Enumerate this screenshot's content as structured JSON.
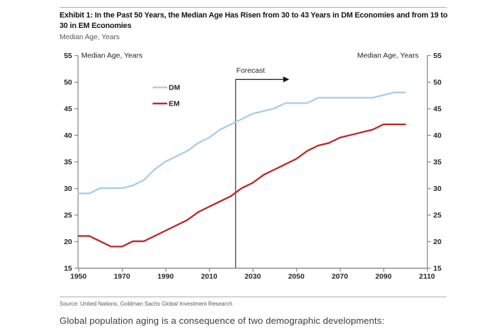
{
  "page": {
    "title": "Exhibit 1: In the Past 50 Years, the Median Age Has Risen from 30 to 43 Years in DM Economies and from 19 to 30 in EM Economies",
    "subtitle": "Median Age, Years",
    "source": "Source: United Nations, Goldman Sachs Global Investment Research",
    "body_text": "Global population aging is a consequence of two demographic developments:"
  },
  "colors": {
    "dm_line": "#A8CEEA",
    "em_line": "#BC2C28",
    "axis": "#8c8c8c",
    "forecast_line": "#4d4d4d",
    "tick_label": "#262626",
    "arrow": "#141414"
  },
  "chart_data": {
    "type": "line",
    "title": "Exhibit 1: In the Past 50 Years, the Median Age Has Risen from 30 to 43 Years in DM Economies and from 19 to 30 in EM Economies",
    "ylabel_left": "Median Age, Years",
    "ylabel_right": "Median Age, Years",
    "xlim": [
      1950,
      2110
    ],
    "ylim": [
      15,
      55
    ],
    "xticks": [
      1950,
      1970,
      1990,
      2010,
      2030,
      2050,
      2070,
      2090,
      2110
    ],
    "yticks": [
      15,
      20,
      25,
      30,
      35,
      40,
      45,
      50,
      55
    ],
    "grid": false,
    "legend_position": "upper-left-inside",
    "forecast": {
      "label": "Forecast",
      "year": 2022
    },
    "x": [
      1950,
      1955,
      1960,
      1965,
      1970,
      1975,
      1980,
      1985,
      1990,
      1995,
      2000,
      2005,
      2010,
      2015,
      2020,
      2025,
      2030,
      2035,
      2040,
      2045,
      2050,
      2055,
      2060,
      2065,
      2070,
      2075,
      2080,
      2085,
      2090,
      2095,
      2100
    ],
    "series": [
      {
        "name": "DM",
        "color": "#A8CEEA",
        "values": [
          29,
          29,
          30,
          30,
          30,
          30.5,
          31.5,
          33.5,
          35,
          36,
          37,
          38.5,
          39.5,
          41,
          42,
          43,
          44,
          44.5,
          45,
          46,
          46,
          46,
          47,
          47,
          47,
          47,
          47,
          47,
          47.5,
          48,
          48
        ]
      },
      {
        "name": "EM",
        "color": "#BC2C28",
        "values": [
          21,
          21,
          20,
          19,
          19,
          20,
          20,
          21,
          22,
          23,
          24,
          25.5,
          26.5,
          27.5,
          28.5,
          30,
          31,
          32.5,
          33.5,
          34.5,
          35.5,
          37,
          38,
          38.5,
          39.5,
          40,
          40.5,
          41,
          42,
          42,
          42
        ]
      }
    ]
  }
}
